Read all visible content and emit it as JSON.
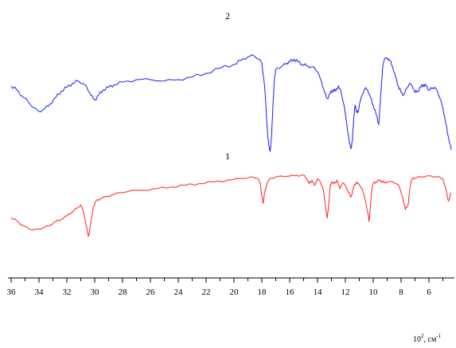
{
  "chart_data": {
    "type": "line",
    "xlabel_prefix": "10",
    "xlabel_exp": "2",
    "xlabel_rest": ", см",
    "xlabel_unit_exp": "-1",
    "xlim": [
      36,
      4.4
    ],
    "x_ticks": [
      "36",
      "34",
      "32",
      "30",
      "28",
      "26",
      "24",
      "22",
      "20",
      "18",
      "16",
      "14",
      "12",
      "10",
      "8",
      "6"
    ],
    "grid": false,
    "series": [
      {
        "name": "2",
        "color": "#1a1aff",
        "x": [
          36,
          35.6,
          35.2,
          34.8,
          34.4,
          34.0,
          33.6,
          33.2,
          32.8,
          32.4,
          32.0,
          31.6,
          31.2,
          30.9,
          30.6,
          30.3,
          30.0,
          29.7,
          29.4,
          29.0,
          28.6,
          28.0,
          27.0,
          26.0,
          25.0,
          24.0,
          23.0,
          22.0,
          21.0,
          20.0,
          19.5,
          19.0,
          18.6,
          18.2,
          18.0,
          17.8,
          17.6,
          17.5,
          17.4,
          17.3,
          17.2,
          17.1,
          17.0,
          16.8,
          16.5,
          16.2,
          16.0,
          15.7,
          15.4,
          15.1,
          14.8,
          14.5,
          14.2,
          14.0,
          13.7,
          13.5,
          13.3,
          13.1,
          12.9,
          12.7,
          12.5,
          12.3,
          12.1,
          11.9,
          11.7,
          11.6,
          11.5,
          11.4,
          11.3,
          11.2,
          11.1,
          11.0,
          10.8,
          10.6,
          10.4,
          10.2,
          10.0,
          9.8,
          9.6,
          9.5,
          9.4,
          9.3,
          9.2,
          9.0,
          8.8,
          8.6,
          8.4,
          8.2,
          8.0,
          7.8,
          7.6,
          7.4,
          7.2,
          7.0,
          6.8,
          6.6,
          6.4,
          6.2,
          6.0,
          5.8,
          5.6,
          5.4,
          5.2,
          5.0,
          4.8,
          4.6,
          4.4
        ],
        "y": [
          55,
          52,
          47,
          43,
          38,
          35,
          37,
          41,
          46,
          51,
          54,
          57,
          59,
          57,
          55,
          48,
          44,
          48,
          52,
          54,
          56,
          58,
          60,
          60,
          59,
          60,
          62,
          65,
          69,
          72,
          75,
          78,
          79,
          76,
          73,
          55,
          20,
          8,
          4,
          15,
          40,
          60,
          68,
          69,
          71,
          73,
          74,
          76,
          74,
          72,
          71,
          70,
          69,
          66,
          58,
          50,
          45,
          49,
          52,
          51,
          55,
          50,
          40,
          25,
          10,
          6,
          12,
          30,
          40,
          35,
          34,
          40,
          48,
          53,
          52,
          46,
          40,
          33,
          25,
          42,
          58,
          72,
          76,
          77,
          75,
          70,
          62,
          55,
          50,
          48,
          53,
          57,
          55,
          50,
          51,
          54,
          56,
          55,
          52,
          53,
          54,
          51,
          45,
          38,
          26,
          15,
          5
        ]
      },
      {
        "name": "1",
        "color": "#ff2222",
        "x": [
          36,
          35.6,
          35.2,
          34.8,
          34.4,
          34.0,
          33.6,
          33.2,
          32.8,
          32.4,
          32.0,
          31.6,
          31.3,
          31.0,
          30.8,
          30.6,
          30.45,
          30.3,
          30.1,
          29.9,
          29.6,
          29.2,
          28.8,
          28.2,
          27.5,
          26.5,
          25.5,
          24.5,
          23.5,
          22.5,
          21.5,
          20.5,
          19.5,
          19.0,
          18.6,
          18.3,
          18.1,
          18.0,
          17.9,
          17.8,
          17.6,
          17.4,
          17.0,
          16.5,
          16.0,
          15.5,
          15.0,
          14.8,
          14.6,
          14.4,
          14.2,
          14.0,
          13.8,
          13.6,
          13.4,
          13.3,
          13.2,
          13.1,
          13.0,
          12.8,
          12.6,
          12.4,
          12.2,
          12.0,
          11.8,
          11.6,
          11.4,
          11.2,
          11.0,
          10.8,
          10.6,
          10.4,
          10.3,
          10.2,
          10.1,
          10.0,
          9.8,
          9.6,
          9.4,
          9.2,
          9.0,
          8.6,
          8.2,
          7.9,
          7.7,
          7.5,
          7.4,
          7.3,
          7.2,
          7.0,
          6.6,
          6.2,
          5.8,
          5.4,
          5.0,
          4.8,
          4.6,
          4.4
        ],
        "y": [
          45,
          41,
          36,
          32,
          30,
          31,
          33,
          36,
          40,
          43,
          47,
          52,
          56,
          60,
          52,
          35,
          22,
          36,
          58,
          65,
          68,
          70,
          72,
          75,
          77,
          78,
          80,
          82,
          84,
          86,
          88,
          90,
          92,
          93,
          94,
          92,
          86,
          70,
          62,
          75,
          88,
          92,
          94,
          95,
          95,
          96,
          96,
          93,
          86,
          90,
          84,
          92,
          88,
          80,
          55,
          44,
          60,
          82,
          88,
          86,
          90,
          80,
          87,
          84,
          76,
          70,
          82,
          88,
          84,
          80,
          68,
          52,
          40,
          58,
          80,
          86,
          88,
          90,
          89,
          87,
          88,
          88,
          85,
          70,
          55,
          60,
          75,
          88,
          92,
          93,
          94,
          95,
          95,
          94,
          92,
          80,
          65,
          75
        ]
      }
    ]
  }
}
